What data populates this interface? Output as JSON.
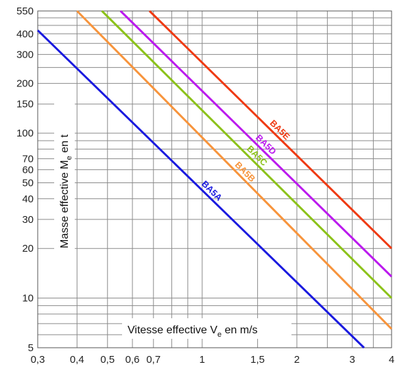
{
  "chart_data": {
    "type": "line",
    "xlabel": "Vitesse effective V",
    "xlabel_sub": "e",
    "xlabel_tail": " en m/s",
    "ylabel": "Masse effective M",
    "ylabel_sub": "e",
    "ylabel_tail": " en t",
    "xscale": "log",
    "yscale": "log",
    "xlim": [
      0.3,
      4
    ],
    "ylim": [
      5,
      550
    ],
    "x_ticks": [
      0.3,
      0.4,
      0.5,
      0.6,
      0.7,
      1,
      1.5,
      2,
      3,
      4
    ],
    "x_tick_labels": [
      "0,3",
      "0,4",
      "0,5",
      "0,6",
      "0,7",
      "1",
      "1,5",
      "2",
      "3",
      "4"
    ],
    "y_ticks": [
      5,
      10,
      20,
      30,
      40,
      50,
      60,
      70,
      100,
      150,
      200,
      300,
      400,
      550
    ],
    "y_tick_labels": [
      "5",
      "10",
      "20",
      "30",
      "40",
      "50",
      "60",
      "70",
      "100",
      "150",
      "200",
      "300",
      "400",
      "550"
    ],
    "x_grid": [
      0.3,
      0.4,
      0.5,
      0.6,
      0.7,
      0.8,
      0.9,
      1,
      1.5,
      2,
      2.5,
      3,
      3.5,
      4
    ],
    "y_grid": [
      5,
      6,
      7,
      8,
      9,
      10,
      20,
      30,
      40,
      50,
      60,
      70,
      80,
      90,
      100,
      150,
      200,
      250,
      300,
      350,
      400,
      450,
      500,
      550
    ],
    "grid": true,
    "series": [
      {
        "name": "BA5A",
        "color": "#1a1adf",
        "x": [
          0.3,
          3.27
        ],
        "y": [
          420,
          5
        ]
      },
      {
        "name": "BA5B",
        "color": "#f7943c",
        "x": [
          0.4,
          4
        ],
        "y": [
          550,
          6.5
        ]
      },
      {
        "name": "BA5C",
        "color": "#8cc21a",
        "x": [
          0.48,
          4
        ],
        "y": [
          550,
          10
        ]
      },
      {
        "name": "BA5D",
        "color": "#bb1aee",
        "x": [
          0.55,
          4
        ],
        "y": [
          550,
          13.5
        ]
      },
      {
        "name": "BA5E",
        "color": "#ef3a13",
        "x": [
          0.68,
          4
        ],
        "y": [
          550,
          20
        ]
      }
    ]
  }
}
